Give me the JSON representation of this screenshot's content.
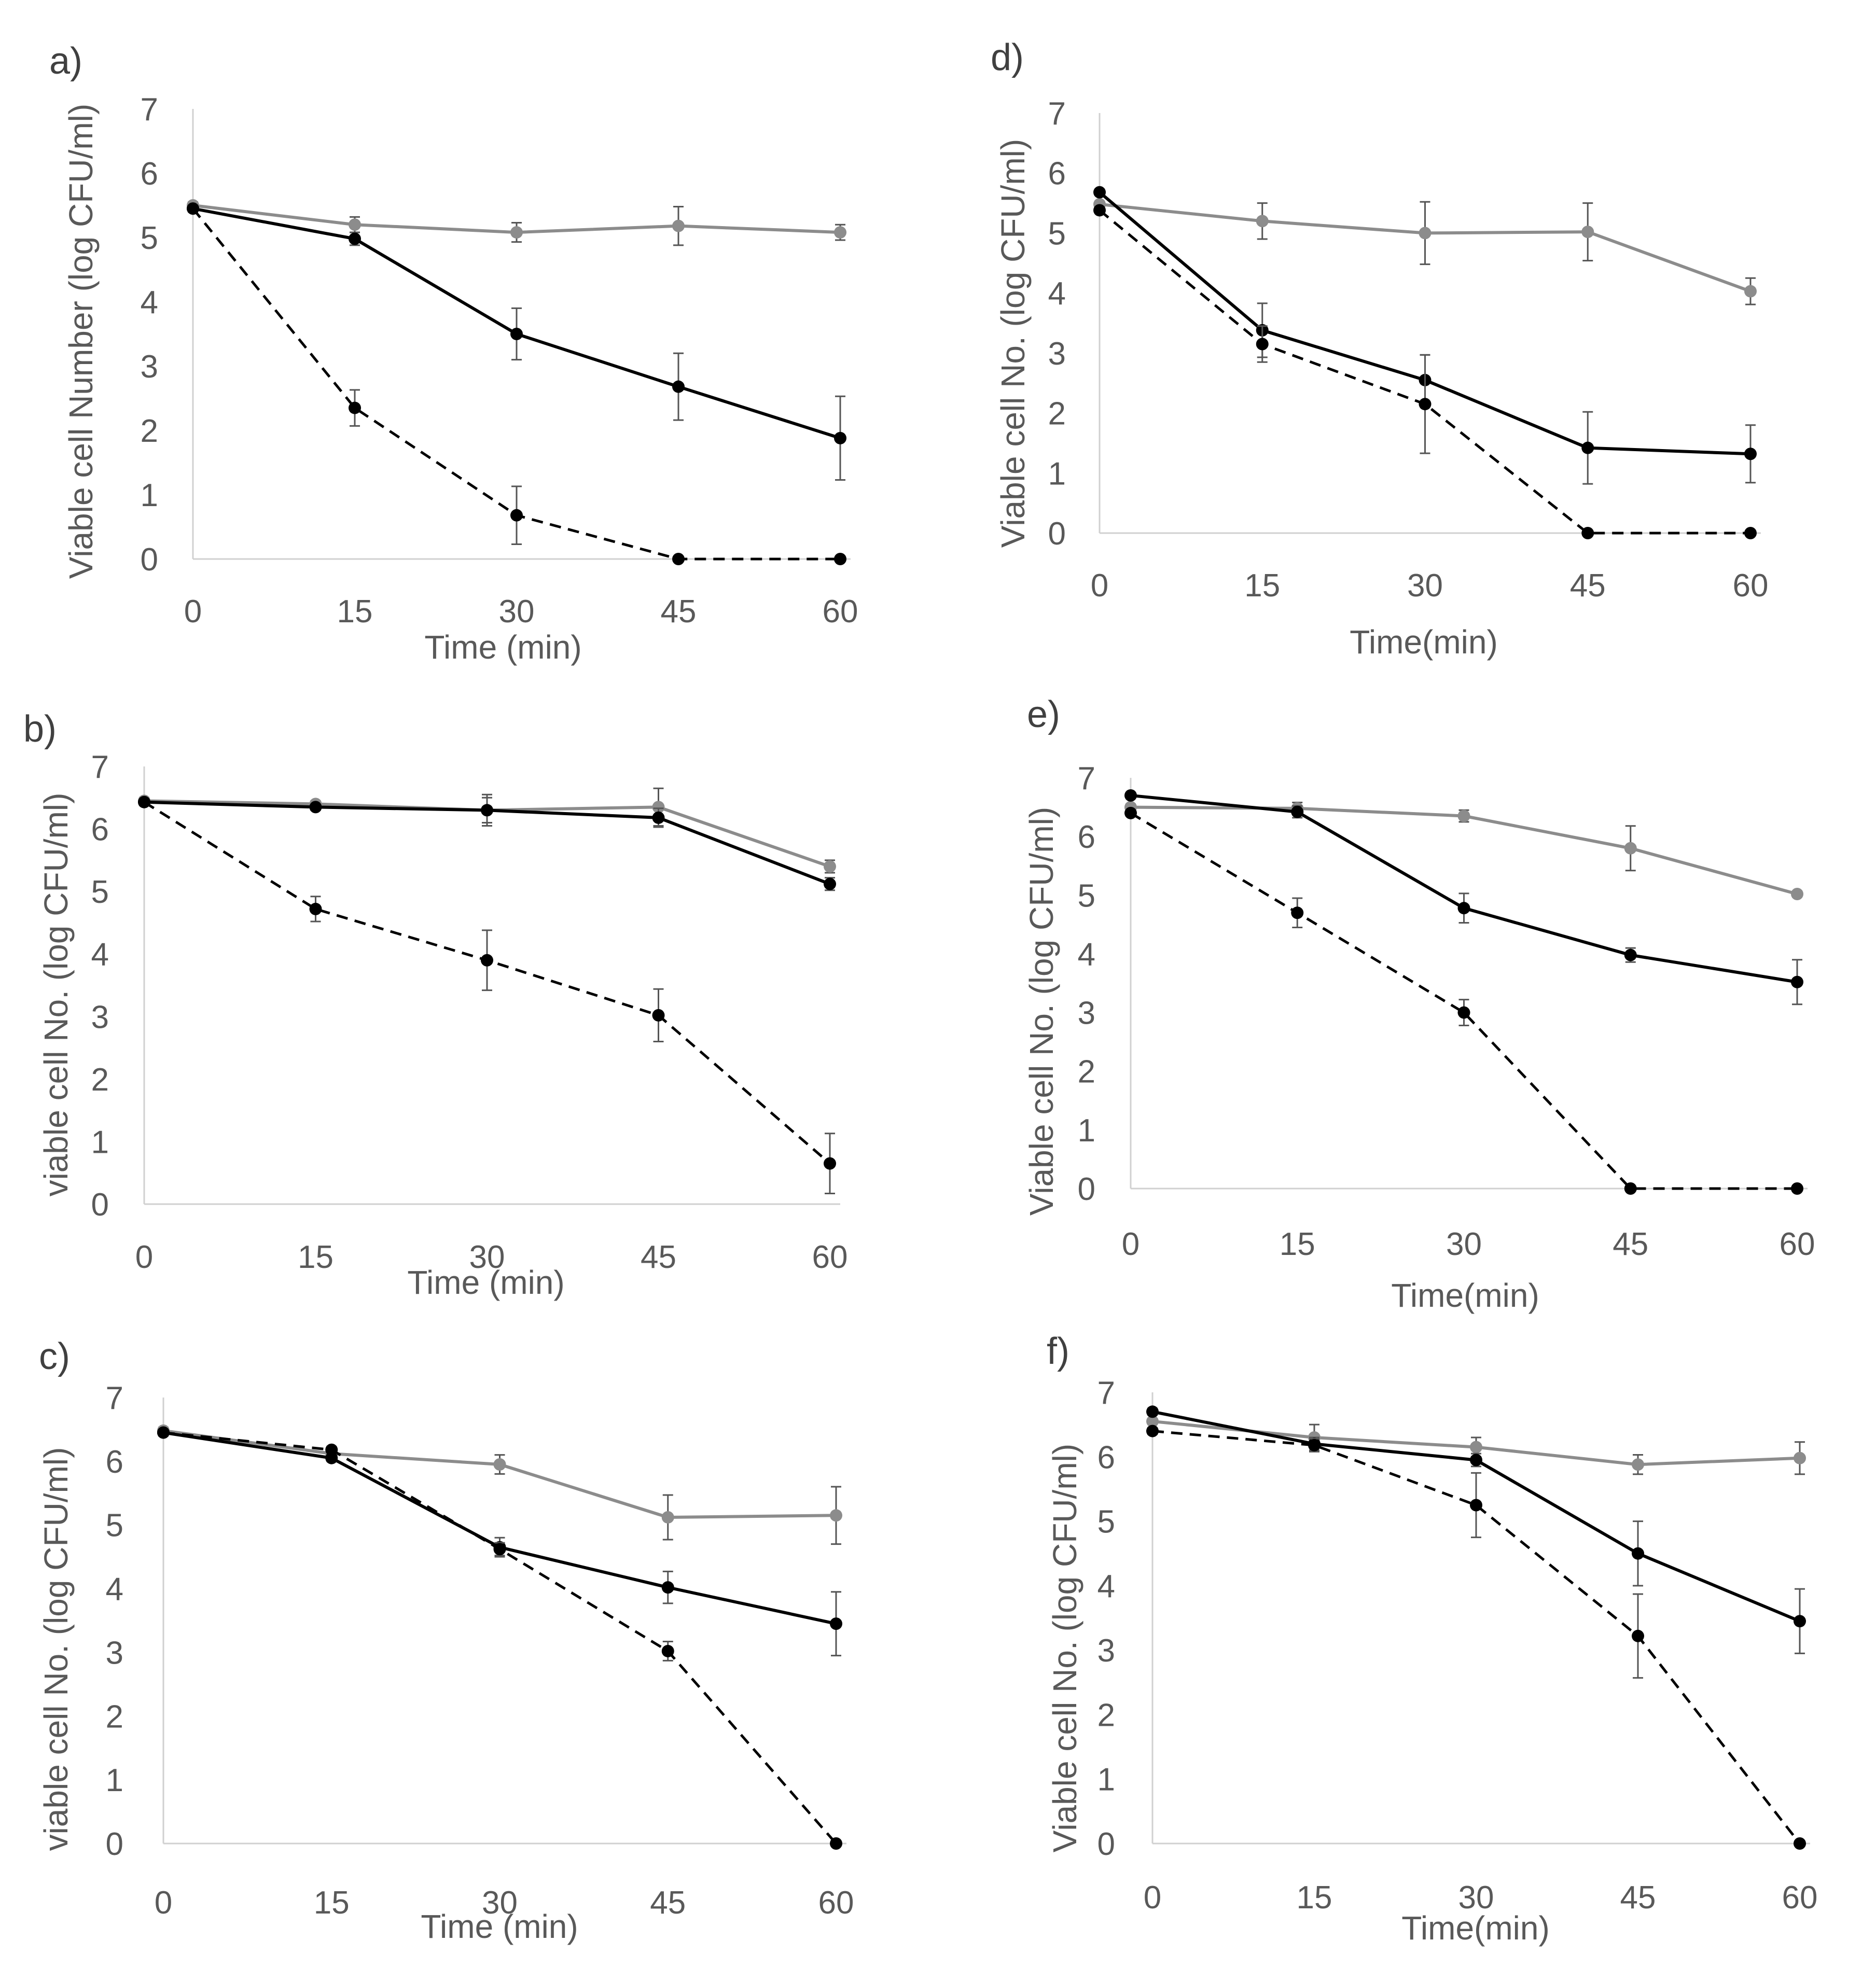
{
  "figure": {
    "colors": {
      "grey": "#8c8c8c",
      "black": "#000000",
      "axis": "#d0d0d0",
      "text": "#595959"
    }
  },
  "chart_data": [
    {
      "id": "a",
      "panel_label": "a)",
      "type": "line",
      "xlabel": "Time (min)",
      "ylabel": "Viable cell Number (log CFU/ml)",
      "x": [
        0,
        15,
        30,
        45,
        60
      ],
      "xlim": [
        0,
        60
      ],
      "ylim": [
        0,
        7
      ],
      "xticks": [
        "0",
        "15",
        "30",
        "45",
        "60"
      ],
      "yticks": [
        "0",
        "1",
        "2",
        "3",
        "4",
        "5",
        "6",
        "7"
      ],
      "series": [
        {
          "name": "grey solid",
          "color": "#8c8c8c",
          "style": "solid",
          "values": [
            5.5,
            5.2,
            5.08,
            5.18,
            5.08
          ],
          "errors": [
            0.05,
            0.12,
            0.15,
            0.3,
            0.12
          ]
        },
        {
          "name": "black solid",
          "color": "#000000",
          "style": "solid",
          "values": [
            5.45,
            4.98,
            3.5,
            2.68,
            1.88
          ],
          "errors": [
            0.05,
            0.1,
            0.4,
            0.52,
            0.65
          ]
        },
        {
          "name": "black dashed",
          "color": "#000000",
          "style": "dashed",
          "values": [
            5.45,
            2.35,
            0.68,
            0.0,
            0.0
          ],
          "errors": [
            0.05,
            0.28,
            0.45,
            0,
            0
          ]
        }
      ]
    },
    {
      "id": "b",
      "panel_label": "b)",
      "type": "line",
      "xlabel": "Time (min)",
      "ylabel": "viable cell No. (log CFU/ml)",
      "x": [
        0,
        15,
        30,
        45,
        60
      ],
      "xlim": [
        0,
        60
      ],
      "ylim": [
        0,
        7
      ],
      "xticks": [
        "0",
        "15",
        "30",
        "45",
        "60"
      ],
      "yticks": [
        "0",
        "1",
        "2",
        "3",
        "4",
        "5",
        "6",
        "7"
      ],
      "series": [
        {
          "name": "grey solid",
          "color": "#8c8c8c",
          "style": "solid",
          "values": [
            6.45,
            6.4,
            6.3,
            6.35,
            5.4
          ],
          "errors": [
            0.05,
            0.05,
            0.25,
            0.3,
            0.1
          ]
        },
        {
          "name": "black solid",
          "color": "#000000",
          "style": "solid",
          "values": [
            6.43,
            6.35,
            6.3,
            6.18,
            5.12
          ],
          "errors": [
            0.05,
            0.05,
            0.2,
            0.15,
            0.1
          ]
        },
        {
          "name": "black dashed",
          "color": "#000000",
          "style": "dashed",
          "values": [
            6.43,
            4.72,
            3.9,
            3.02,
            0.65
          ],
          "errors": [
            0.05,
            0.2,
            0.48,
            0.42,
            0.48
          ]
        }
      ]
    },
    {
      "id": "c",
      "panel_label": "c)",
      "type": "line",
      "xlabel": "Time (min)",
      "ylabel": "viable cell No. (log CFU/ml)",
      "x": [
        0,
        15,
        30,
        45,
        60
      ],
      "xlim": [
        0,
        60
      ],
      "ylim": [
        0,
        7
      ],
      "xticks": [
        "0",
        "15",
        "30",
        "45",
        "60"
      ],
      "yticks": [
        "0",
        "1",
        "2",
        "3",
        "4",
        "5",
        "6",
        "7"
      ],
      "series": [
        {
          "name": "grey solid",
          "color": "#8c8c8c",
          "style": "solid",
          "values": [
            6.48,
            6.12,
            5.95,
            5.12,
            5.15
          ],
          "errors": [
            0.05,
            0.08,
            0.15,
            0.35,
            0.45
          ]
        },
        {
          "name": "black solid",
          "color": "#000000",
          "style": "solid",
          "values": [
            6.45,
            6.05,
            4.65,
            4.02,
            3.45
          ],
          "errors": [
            0.05,
            0.05,
            0.15,
            0.25,
            0.5
          ]
        },
        {
          "name": "black dashed",
          "color": "#000000",
          "style": "dashed",
          "values": [
            6.45,
            6.18,
            4.62,
            3.02,
            0.0
          ],
          "errors": [
            0.05,
            0.05,
            0.1,
            0.15,
            0
          ]
        }
      ]
    },
    {
      "id": "d",
      "panel_label": "d)",
      "type": "line",
      "xlabel": "Time(min)",
      "ylabel": "Viable cell No. (log CFU/ml)",
      "x": [
        0,
        15,
        30,
        45,
        60
      ],
      "xlim": [
        0,
        60
      ],
      "ylim": [
        0,
        7
      ],
      "xticks": [
        "0",
        "15",
        "30",
        "45",
        "60"
      ],
      "yticks": [
        "0",
        "1",
        "2",
        "3",
        "4",
        "5",
        "6",
        "7"
      ],
      "series": [
        {
          "name": "grey solid",
          "color": "#8c8c8c",
          "style": "solid",
          "values": [
            5.48,
            5.2,
            5.0,
            5.02,
            4.03
          ],
          "errors": [
            0.05,
            0.3,
            0.52,
            0.48,
            0.22
          ]
        },
        {
          "name": "black solid",
          "color": "#000000",
          "style": "solid",
          "values": [
            5.68,
            3.38,
            2.55,
            1.42,
            1.32
          ],
          "errors": [
            0.05,
            0.45,
            0.42,
            0.6,
            0.48
          ]
        },
        {
          "name": "black dashed",
          "color": "#000000",
          "style": "dashed",
          "values": [
            5.38,
            3.15,
            2.15,
            0.0,
            0.0
          ],
          "errors": [
            0.05,
            0.3,
            0.82,
            0,
            0
          ]
        }
      ]
    },
    {
      "id": "e",
      "panel_label": "e)",
      "type": "line",
      "xlabel": "Time(min)",
      "ylabel": "Viable cell No. (log CFU/ml)",
      "x": [
        0,
        15,
        30,
        45,
        60
      ],
      "xlim": [
        0,
        60
      ],
      "ylim": [
        0,
        7
      ],
      "xticks": [
        "0",
        "15",
        "30",
        "45",
        "60"
      ],
      "yticks": [
        "0",
        "1",
        "2",
        "3",
        "4",
        "5",
        "6",
        "7"
      ],
      "series": [
        {
          "name": "grey solid",
          "color": "#8c8c8c",
          "style": "solid",
          "values": [
            6.5,
            6.48,
            6.35,
            5.8,
            5.02
          ],
          "errors": [
            0.05,
            0.1,
            0.1,
            0.38,
            0.05
          ]
        },
        {
          "name": "black solid",
          "color": "#000000",
          "style": "solid",
          "values": [
            6.7,
            6.42,
            4.78,
            3.98,
            3.52
          ],
          "errors": [
            0.05,
            0.1,
            0.25,
            0.12,
            0.38
          ]
        },
        {
          "name": "black dashed",
          "color": "#000000",
          "style": "dashed",
          "values": [
            6.4,
            4.7,
            3.0,
            0.0,
            0.0
          ],
          "errors": [
            0.05,
            0.25,
            0.22,
            0,
            0
          ]
        }
      ]
    },
    {
      "id": "f",
      "panel_label": "f)",
      "type": "line",
      "xlabel": "Time(min)",
      "ylabel": "Viable cell No. (log CFU/ml)",
      "x": [
        0,
        15,
        30,
        45,
        60
      ],
      "xlim": [
        0,
        60
      ],
      "ylim": [
        0,
        7
      ],
      "xticks": [
        "0",
        "15",
        "30",
        "45",
        "60"
      ],
      "yticks": [
        "0",
        "1",
        "2",
        "3",
        "4",
        "5",
        "6",
        "7"
      ],
      "series": [
        {
          "name": "grey solid",
          "color": "#8c8c8c",
          "style": "solid",
          "values": [
            6.55,
            6.3,
            6.15,
            5.88,
            5.98
          ],
          "errors": [
            0.1,
            0.2,
            0.15,
            0.15,
            0.25
          ]
        },
        {
          "name": "black solid",
          "color": "#000000",
          "style": "solid",
          "values": [
            6.7,
            6.2,
            5.95,
            4.5,
            3.45
          ],
          "errors": [
            0.05,
            0.1,
            0.1,
            0.5,
            0.5
          ]
        },
        {
          "name": "black dashed",
          "color": "#000000",
          "style": "dashed",
          "values": [
            6.4,
            6.18,
            5.25,
            3.22,
            0.0
          ],
          "errors": [
            0.05,
            0.1,
            0.5,
            0.65,
            0
          ]
        }
      ]
    }
  ]
}
